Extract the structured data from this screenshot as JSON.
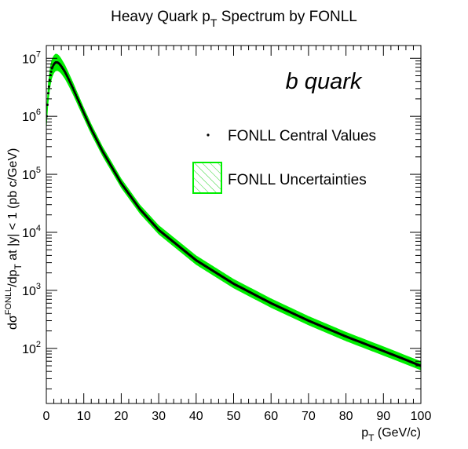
{
  "chart_data": {
    "type": "scatter",
    "title": {
      "main": "Heavy Quark p",
      "sub": "T",
      "rest": " Spectrum by FONLL"
    },
    "xlabel": {
      "main": "p",
      "sub": "T",
      "rest": " (GeV/c)"
    },
    "ylabel": {
      "a": "dσ",
      "sup": "FONLL",
      "b": "/dp",
      "sub": "T",
      "c": " at |y| < 1 (pb c/GeV)"
    },
    "annotation": "b quark",
    "xlim": [
      0,
      100
    ],
    "ylim_log10": [
      1.05,
      7.22
    ],
    "yscale": "log",
    "x_ticks": [
      0,
      10,
      20,
      30,
      40,
      50,
      60,
      70,
      80,
      90,
      100
    ],
    "x_tick_labels": [
      "0",
      "10",
      "20",
      "30",
      "40",
      "50",
      "60",
      "70",
      "80",
      "90",
      "100"
    ],
    "y_tick_exponents": [
      2,
      3,
      4,
      5,
      6,
      7
    ],
    "y_tick_base": "10",
    "legend": {
      "central_label": "FONLL Central Values",
      "uncert_label": "FONLL Uncertainties"
    },
    "colors": {
      "central": "#000000",
      "band": "#00ee00",
      "frame": "#000000"
    },
    "series": [
      {
        "name": "FONLL Central Values",
        "x": [
          0.1,
          0.5,
          1,
          1.5,
          2,
          2.5,
          3,
          3.5,
          4,
          5,
          6,
          7,
          8,
          10,
          12,
          15,
          20,
          25,
          30,
          40,
          50,
          60,
          70,
          80,
          90,
          100
        ],
        "y": [
          1000000,
          2500000,
          4800000,
          6700000,
          7900000,
          8500000,
          8500000,
          8000000,
          7300000,
          5800000,
          4300000,
          3150000,
          2250000,
          1150000,
          600000,
          250000,
          70000,
          25000,
          11000,
          3300,
          1300,
          600,
          300,
          160,
          90,
          50
        ]
      }
    ],
    "uncertainty_band": {
      "name": "FONLL Uncertainties",
      "x": [
        0.1,
        0.5,
        1,
        1.5,
        2,
        2.5,
        3,
        3.5,
        4,
        5,
        6,
        7,
        8,
        10,
        12,
        15,
        20,
        25,
        30,
        40,
        50,
        60,
        70,
        80,
        90,
        100
      ],
      "upper": [
        1600000,
        3900000,
        7300000,
        9800000,
        11300000,
        12000000,
        11800000,
        11000000,
        9900000,
        7700000,
        5600000,
        4050000,
        2850000,
        1430000,
        740000,
        305000,
        85000,
        30000,
        13300,
        4000,
        1570,
        725,
        360,
        192,
        108,
        60
      ],
      "lower": [
        650000,
        1600000,
        3100000,
        4500000,
        5500000,
        6000000,
        6100000,
        5800000,
        5400000,
        4350000,
        3300000,
        2450000,
        1770000,
        920000,
        485000,
        205000,
        58000,
        20800,
        9200,
        2750,
        1085,
        500,
        250,
        133,
        75,
        42
      ]
    }
  }
}
